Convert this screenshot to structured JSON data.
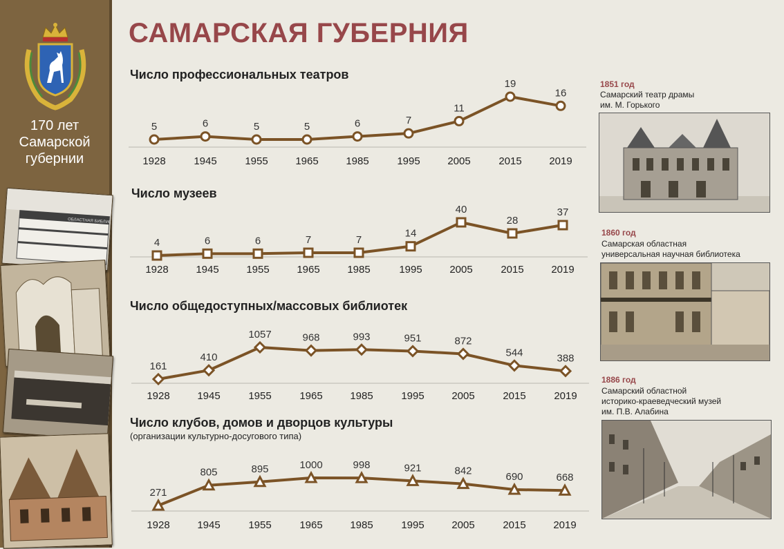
{
  "page": {
    "title": "САМАРСКАЯ ГУБЕРНИЯ"
  },
  "sidebar": {
    "caption": "170 лет\nСамарской\nгубернии"
  },
  "chart_data": [
    {
      "type": "line",
      "title": "Число профессиональных театров",
      "categories": [
        "1928",
        "1945",
        "1955",
        "1965",
        "1985",
        "1995",
        "2005",
        "2015",
        "2019"
      ],
      "values": [
        5,
        6,
        5,
        5,
        6,
        7,
        11,
        19,
        16
      ],
      "marker": "circle",
      "ylim": [
        0,
        25
      ]
    },
    {
      "type": "line",
      "title": "Число музеев",
      "categories": [
        "1928",
        "1945",
        "1955",
        "1965",
        "1985",
        "1995",
        "2005",
        "2015",
        "2019"
      ],
      "values": [
        4,
        6,
        6,
        7,
        7,
        14,
        40,
        28,
        37
      ],
      "marker": "square",
      "ylim": [
        0,
        50
      ]
    },
    {
      "type": "line",
      "title": "Число общедоступных/массовых библиотек",
      "categories": [
        "1928",
        "1945",
        "1955",
        "1965",
        "1985",
        "1995",
        "2005",
        "2015",
        "2019"
      ],
      "values": [
        161,
        410,
        1057,
        968,
        993,
        951,
        872,
        544,
        388
      ],
      "marker": "diamond",
      "ylim": [
        0,
        1200
      ]
    },
    {
      "type": "line",
      "title": "Число клубов, домов и дворцов культуры",
      "subtitle": "(организации культурно-досугового типа)",
      "categories": [
        "1928",
        "1945",
        "1955",
        "1965",
        "1985",
        "1995",
        "2005",
        "2015",
        "2019"
      ],
      "values": [
        271,
        805,
        895,
        1000,
        998,
        921,
        842,
        690,
        668
      ],
      "marker": "triangle",
      "ylim": [
        0,
        1200
      ]
    }
  ],
  "captions": [
    {
      "year": "1851 год",
      "text": "Самарский театр драмы\nим. М. Горького"
    },
    {
      "year": "1860 год",
      "text": "Самарская областная\nуниверсальная  научная библиотека"
    },
    {
      "year": "1886 год",
      "text": "Самарский областной\nисторико-краеведческий  музей\nим. П.В. Алабина"
    }
  ],
  "colors": {
    "line": "#7b5326",
    "marker_fill": "#ffffff",
    "title": "#97474a",
    "sidebar": "#7d6440"
  },
  "sidebar_photo_text": "ОБЛАСТНАЯ БИБЛИОТЕКА"
}
